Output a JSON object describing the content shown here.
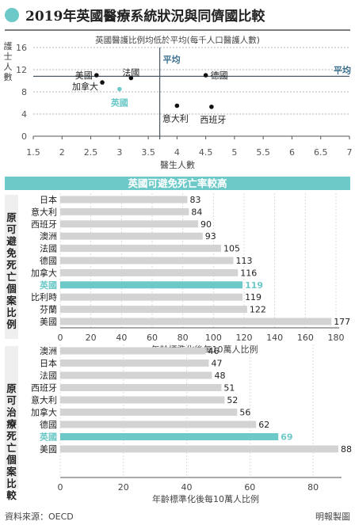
{
  "header": {
    "title": "2019年英國醫療系統狀況與同儕國比較"
  },
  "colors": {
    "accent": "#6cc9c8",
    "bar": "#d3d3d3",
    "dot": "#111111",
    "avg_line": "#4a5a6a",
    "avg_label": "#3a6f8f",
    "text": "#222222",
    "side_panel": "#efefef"
  },
  "footer": {
    "source": "資料來源：OECD",
    "credit": "明報製圖"
  },
  "chart_data": [
    {
      "type": "scatter",
      "title": "英國醫護比例均低於平均(每千人口醫護人數)",
      "xlabel": "醫生人數",
      "ylabel": "護士人數",
      "xlim": [
        1.5,
        7
      ],
      "ylim": [
        0,
        16
      ],
      "xticks": [
        1.5,
        2,
        2.5,
        3,
        3.5,
        4,
        4.5,
        5,
        5.5,
        6,
        6.5,
        7
      ],
      "yticks": [
        0,
        4,
        8,
        12,
        16
      ],
      "points": [
        {
          "label": "美國",
          "x": 2.6,
          "y": 11.0
        },
        {
          "label": "加拿大",
          "x": 2.7,
          "y": 9.7
        },
        {
          "label": "法國",
          "x": 3.2,
          "y": 10.5
        },
        {
          "label": "英國",
          "x": 3.0,
          "y": 8.5,
          "highlight": true
        },
        {
          "label": "德國",
          "x": 4.5,
          "y": 11.0
        },
        {
          "label": "意大利",
          "x": 4.0,
          "y": 5.5
        },
        {
          "label": "西班牙",
          "x": 4.6,
          "y": 5.3
        }
      ],
      "avg_x": 3.7,
      "avg_y": 10.8,
      "avg_label": "平均",
      "grid": "horizontal dashed"
    },
    {
      "type": "bar",
      "orientation": "horizontal",
      "section_title": "英國可避免死亡率較高",
      "side_label": "原可避免死亡個案比例",
      "categories": [
        "日本",
        "意大利",
        "西班牙",
        "澳洲",
        "法國",
        "德國",
        "加拿大",
        "英國",
        "比利時",
        "芬蘭",
        "美國"
      ],
      "values": [
        83,
        84,
        90,
        93,
        105,
        113,
        116,
        119,
        119,
        122,
        177
      ],
      "highlight": "英國",
      "xlim": [
        0,
        180
      ],
      "xticks": [
        0,
        20,
        40,
        60,
        80,
        100,
        120,
        140,
        160,
        180
      ],
      "xlabel": "年齡標準化後每10萬人比例"
    },
    {
      "type": "bar",
      "orientation": "horizontal",
      "side_label": "原可治療死亡個案比較",
      "categories": [
        "澳洲",
        "日本",
        "法國",
        "西班牙",
        "意大利",
        "加拿大",
        "德國",
        "英國",
        "美國"
      ],
      "values": [
        46,
        47,
        48,
        51,
        52,
        56,
        62,
        69,
        88
      ],
      "highlight": "英國",
      "xlim": [
        0,
        88
      ],
      "xticks": [
        0,
        20,
        40,
        60,
        80
      ],
      "xlabel": "年齡標準化後每10萬人比例"
    }
  ]
}
